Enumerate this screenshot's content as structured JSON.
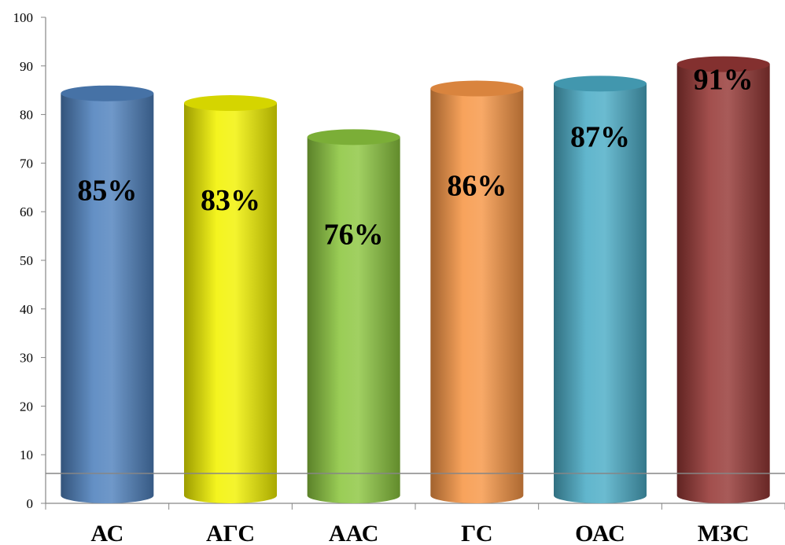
{
  "chart_data": {
    "type": "bar",
    "style": "3d-cylinder",
    "categories": [
      "АС",
      "АГС",
      "ААС",
      "ГС",
      "ОАС",
      "МЗС"
    ],
    "values": [
      85,
      83,
      76,
      86,
      87,
      91
    ],
    "data_labels": [
      "85%",
      "83%",
      "76%",
      "86%",
      "87%",
      "91%"
    ],
    "colors": [
      "#4F81BD",
      "#F2F200",
      "#8CC63F",
      "#F79646",
      "#4BACC6",
      "#953735"
    ],
    "ylim": [
      0,
      100
    ],
    "yticks": [
      "0",
      "10",
      "20",
      "30",
      "40",
      "50",
      "60",
      "70",
      "80",
      "90",
      "100"
    ],
    "grid": false,
    "legend": "none"
  }
}
